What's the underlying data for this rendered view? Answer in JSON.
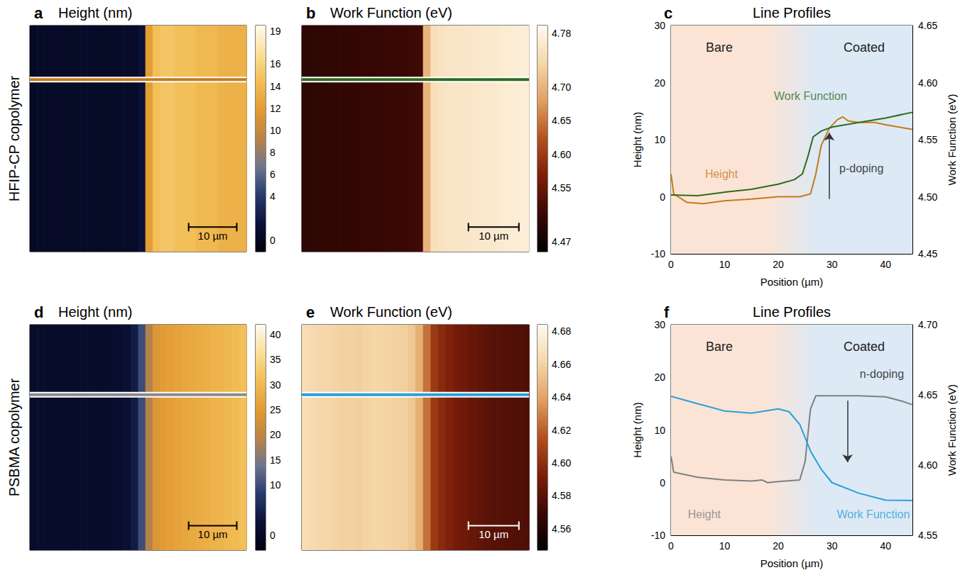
{
  "row_labels": [
    "HFIP-CP copolymer",
    "PSBMA copolymer"
  ],
  "chart_data": [
    {
      "panel": "a",
      "type": "heatmap",
      "title": "Height (nm)",
      "tick_labels": false,
      "xlim": [
        0,
        45
      ],
      "ylim": [
        0,
        46
      ],
      "x_edges": [
        0,
        1.5,
        3,
        4.5,
        6,
        7.5,
        9,
        10.5,
        12,
        13.5,
        15,
        16.5,
        18,
        19.5,
        21,
        22.5,
        24,
        25.5,
        27,
        28.5,
        30,
        31.5,
        33,
        34.5,
        36,
        37.5,
        39,
        40.5,
        42,
        43.5,
        45
      ],
      "values": [
        0.3,
        0.5,
        0.4,
        0.6,
        0.5,
        0.4,
        0.5,
        0.6,
        0.5,
        0.4,
        0.5,
        0.6,
        0.5,
        0.5,
        0.6,
        1.5,
        12,
        14.5,
        15,
        15,
        14.5,
        14.5,
        14.5,
        14,
        14,
        14,
        13.5,
        13.5,
        13.5,
        13.5
      ],
      "profile": {
        "y": 35,
        "color": "#c47a1c"
      },
      "scale_bar": {
        "value": 10,
        "label": "10 µm",
        "x": 33,
        "y": 5,
        "color": "#000000"
      },
      "colorbar": {
        "range": [
          -1,
          19.5
        ],
        "ticks": [
          0,
          4,
          6,
          8,
          10,
          12,
          14,
          16,
          19
        ],
        "colors": [
          "#00000f",
          "#0b1238",
          "#273a6e",
          "#6d7590",
          "#b98446",
          "#e29a33",
          "#f2bd55",
          "#fadf95",
          "#fffaf0"
        ]
      }
    },
    {
      "panel": "b",
      "type": "heatmap",
      "title": "Work Function (eV)",
      "tick_labels": false,
      "xlim": [
        0,
        45
      ],
      "ylim": [
        0,
        46
      ],
      "x_edges": [
        0,
        1.5,
        3,
        4.5,
        6,
        7.5,
        9,
        10.5,
        12,
        13.5,
        15,
        16.5,
        18,
        19.5,
        21,
        22.5,
        24,
        25.5,
        27,
        28.5,
        30,
        31.5,
        33,
        34.5,
        36,
        37.5,
        39,
        40.5,
        42,
        43.5,
        45
      ],
      "values": [
        4.5,
        4.5,
        4.5,
        4.501,
        4.502,
        4.503,
        4.504,
        4.505,
        4.505,
        4.506,
        4.507,
        4.508,
        4.509,
        4.51,
        4.512,
        4.515,
        4.7,
        4.75,
        4.755,
        4.758,
        4.76,
        4.76,
        4.762,
        4.764,
        4.765,
        4.766,
        4.768,
        4.77,
        4.772,
        4.774
      ],
      "profile": {
        "y": 35,
        "color": "#2f6b1f"
      },
      "scale_bar": {
        "value": 10,
        "label": "10 µm",
        "x": 33,
        "y": 5,
        "color": "#000000"
      },
      "colorbar": {
        "range": [
          4.455,
          4.792
        ],
        "ticks": [
          4.47,
          4.55,
          {
            "value": 4.6,
            "label": "4.60"
          },
          4.65,
          {
            "value": 4.7,
            "label": "4.70"
          },
          4.78
        ],
        "colors": [
          "#000000",
          "#3a0804",
          "#7c1e0a",
          "#b4501c",
          "#e0a060",
          "#f5d6a8",
          "#fffaf0"
        ]
      }
    },
    {
      "panel": "c",
      "type": "line",
      "title": "Line Profiles",
      "x_label": "Position (µm)",
      "y_label": "Height (nm)",
      "y2_label": "Work Function (eV)",
      "xlim": [
        0,
        45
      ],
      "xticks": [
        0,
        10,
        20,
        30,
        40
      ],
      "ylim": [
        -10,
        30
      ],
      "yticks": [
        -10,
        0,
        10,
        20,
        30
      ],
      "y2lim": [
        4.45,
        4.65
      ],
      "y2ticks": [
        4.45,
        {
          "value": 4.5,
          "label": "4.50"
        },
        4.55,
        {
          "value": 4.6,
          "label": "4.60"
        },
        4.65
      ],
      "regions": [
        {
          "label": "Bare",
          "from": 0,
          "to": 18,
          "color": "#fbe4d6"
        },
        {
          "label": "Coated",
          "from": 27,
          "to": 45,
          "color": "#dde9f5"
        }
      ],
      "series": [
        {
          "name": "Height",
          "color": "#c47a1c",
          "label_at": [
            9.4,
            4
          ],
          "x": [
            0,
            0.5,
            3,
            6,
            10,
            15,
            20,
            24,
            26,
            27,
            28,
            29.5,
            31,
            32,
            33,
            35,
            38,
            40,
            45
          ],
          "values": [
            4,
            0.5,
            -1,
            -1.2,
            -0.7,
            -0.4,
            0,
            0,
            0.5,
            4,
            9,
            12,
            13.5,
            14,
            13.3,
            13,
            13,
            12.6,
            11.8
          ]
        },
        {
          "name": "Work Function",
          "color": "#2f6b1f",
          "axis": "y2",
          "label_at": [
            26,
            4.588
          ],
          "x": [
            0,
            5,
            10,
            15,
            20,
            23,
            24.5,
            25.5,
            26.5,
            28,
            30,
            35,
            40,
            45
          ],
          "values": [
            4.5015,
            4.501,
            4.504,
            4.5065,
            4.511,
            4.515,
            4.52,
            4.535,
            4.5525,
            4.5575,
            4.561,
            4.565,
            4.569,
            4.574
          ]
        }
      ],
      "annotations": [
        {
          "text": "p-doping",
          "x": 35.5,
          "y": 4.525,
          "axis": "y2",
          "arrow": {
            "x": 29.5,
            "from": 4.498,
            "to": 4.556
          }
        }
      ]
    },
    {
      "panel": "d",
      "type": "heatmap",
      "title": "Height (nm)",
      "tick_labels": false,
      "xlim": [
        0,
        45
      ],
      "ylim": [
        0,
        46
      ],
      "x_edges": [
        0,
        1.5,
        3,
        4.5,
        6,
        7.5,
        9,
        10.5,
        12,
        13.5,
        15,
        16.5,
        18,
        19.5,
        21,
        22.5,
        24,
        25.5,
        27,
        28.5,
        30,
        31.5,
        33,
        34.5,
        36,
        37.5,
        39,
        40.5,
        42,
        43.5,
        45
      ],
      "values": [
        0.8,
        1,
        0.9,
        1,
        1.1,
        1,
        0.9,
        1,
        1,
        1.1,
        1,
        1.2,
        1.5,
        2,
        4,
        10,
        19,
        24,
        25.5,
        26,
        26.5,
        27,
        27.5,
        28,
        28.5,
        29,
        29.5,
        30,
        30.5,
        31
      ],
      "profile": {
        "y": 31.7,
        "color": "#8a8a8a"
      },
      "scale_bar": {
        "value": 10,
        "label": "10 µm",
        "x": 33,
        "y": 5,
        "color": "#000000"
      },
      "colorbar": {
        "range": [
          -3,
          42
        ],
        "ticks": [
          0,
          10,
          15,
          20,
          25,
          30,
          35,
          40
        ],
        "colors": [
          "#00000f",
          "#0b1238",
          "#273a6e",
          "#6d7590",
          "#b98446",
          "#e29a33",
          "#f2bd55",
          "#fadf95",
          "#fffaf0"
        ]
      }
    },
    {
      "panel": "e",
      "type": "heatmap",
      "title": "Work Function (eV)",
      "tick_labels": false,
      "xlim": [
        0,
        45
      ],
      "ylim": [
        0,
        46
      ],
      "x_edges": [
        0,
        1.5,
        3,
        4.5,
        6,
        7.5,
        9,
        10.5,
        12,
        13.5,
        15,
        16.5,
        18,
        19.5,
        21,
        22.5,
        24,
        25.5,
        27,
        28.5,
        30,
        31.5,
        33,
        34.5,
        36,
        37.5,
        39,
        40.5,
        42,
        43.5,
        45
      ],
      "values": [
        4.665,
        4.664,
        4.662,
        4.662,
        4.66,
        4.659,
        4.659,
        4.658,
        4.66,
        4.661,
        4.661,
        4.66,
        4.659,
        4.658,
        4.655,
        4.645,
        4.625,
        4.605,
        4.598,
        4.594,
        4.59,
        4.588,
        4.585,
        4.583,
        4.581,
        4.58,
        4.579,
        4.578,
        4.577,
        4.577
      ],
      "profile": {
        "y": 31.7,
        "color": "#2aa0d8"
      },
      "scale_bar": {
        "value": 10,
        "label": "10 µm",
        "x": 33,
        "y": 5,
        "color": "#ffffff"
      },
      "colorbar": {
        "range": [
          4.547,
          4.684
        ],
        "ticks": [
          4.56,
          4.58,
          {
            "value": 4.6,
            "label": "4.60"
          },
          4.62,
          4.64,
          4.66,
          4.68
        ],
        "colors": [
          "#000000",
          "#3a0804",
          "#7c1e0a",
          "#b4501c",
          "#e0a060",
          "#f5d6a8",
          "#fffaf0"
        ]
      }
    },
    {
      "panel": "f",
      "type": "line",
      "title": "Line Profiles",
      "x_label": "Position (µm)",
      "y_label": "Height (nm)",
      "y2_label": "Work Function (eV)",
      "xlim": [
        0,
        45
      ],
      "xticks": [
        0,
        10,
        20,
        30,
        40
      ],
      "ylim": [
        -10,
        30
      ],
      "yticks": [
        -10,
        0,
        10,
        20,
        30
      ],
      "y2lim": [
        4.55,
        4.7
      ],
      "y2ticks": [
        4.55,
        {
          "value": 4.6,
          "label": "4.60"
        },
        4.65,
        {
          "value": 4.7,
          "label": "4.70"
        }
      ],
      "regions": [
        {
          "label": "Bare",
          "from": 0,
          "to": 18,
          "color": "#fbe4d6"
        },
        {
          "label": "Coated",
          "from": 27,
          "to": 45,
          "color": "#dde9f5"
        }
      ],
      "series": [
        {
          "name": "Height",
          "color": "#7f7f7f",
          "label_at": [
            6.2,
            -6
          ],
          "x": [
            0,
            0.5,
            5,
            10,
            15,
            17,
            18,
            20,
            24,
            25,
            26,
            27,
            30,
            35,
            40,
            43,
            45
          ],
          "values": [
            5,
            2,
            1,
            0.5,
            0.3,
            0.5,
            0,
            0.2,
            0.5,
            4,
            14,
            16.5,
            16.5,
            16.5,
            16.3,
            15.5,
            14.8
          ]
        },
        {
          "name": "Work Function",
          "color": "#2aa0d8",
          "axis": "y2",
          "label_at": [
            37.7,
            4.565
          ],
          "x": [
            0,
            5,
            10,
            15,
            20,
            22,
            24,
            26,
            28,
            30,
            35,
            40,
            45
          ],
          "values": [
            4.649,
            4.6437,
            4.6385,
            4.637,
            4.64,
            4.638,
            4.629,
            4.61,
            4.597,
            4.5875,
            4.58,
            4.575,
            4.5748
          ]
        }
      ],
      "annotations": [
        {
          "text": "n-doping",
          "x": 39.3,
          "y": 4.665,
          "axis": "y2",
          "arrow": {
            "x": 32.9,
            "from": 4.646,
            "to": 4.602
          }
        }
      ]
    }
  ]
}
